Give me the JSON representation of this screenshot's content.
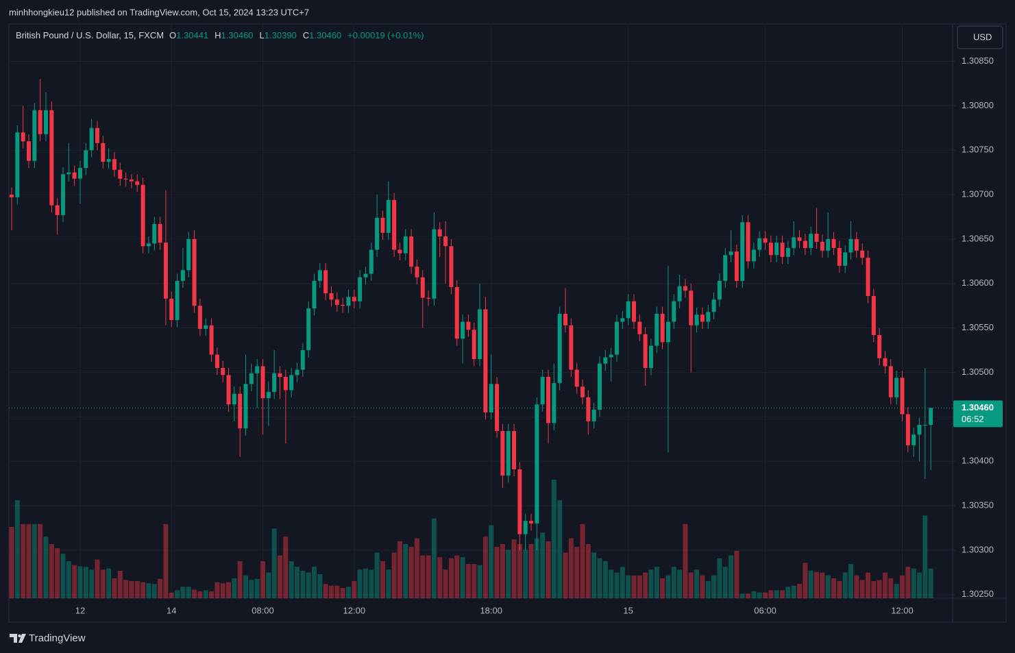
{
  "chart_data": {
    "type": "candlestick",
    "publisher": "minhhongkieu12 published on TradingView.com, Oct 15, 2024 13:23 UTC+7",
    "title": "British Pound / U.S. Dollar, 15, FXCM",
    "ohlc_legend": [
      {
        "key": "O",
        "label": "1.30441"
      },
      {
        "key": "H",
        "label": "1.30460"
      },
      {
        "key": "L",
        "label": "1.30390"
      },
      {
        "key": "C",
        "label": "1.30460"
      }
    ],
    "change": "+0.00019 (+0.01%)",
    "currency": "USD",
    "brand": "TradingView",
    "up_color": "#089981",
    "down_color": "#f23645",
    "grid": true,
    "categories": [
      null,
      null,
      null,
      null,
      null,
      null,
      null,
      null,
      null,
      null,
      null,
      null,
      "12",
      null,
      null,
      null,
      null,
      null,
      null,
      null,
      null,
      null,
      null,
      null,
      null,
      null,
      null,
      null,
      "14",
      null,
      null,
      null,
      null,
      null,
      null,
      null,
      null,
      null,
      null,
      null,
      null,
      null,
      null,
      null,
      "08:00",
      null,
      null,
      null,
      null,
      null,
      null,
      null,
      null,
      null,
      null,
      null,
      null,
      null,
      null,
      null,
      "12:00",
      null,
      null,
      null,
      null,
      null,
      null,
      null,
      null,
      null,
      null,
      null,
      null,
      null,
      null,
      null,
      null,
      null,
      null,
      null,
      null,
      null,
      null,
      null,
      "18:00",
      null,
      null,
      null,
      null,
      null,
      null,
      null,
      null,
      null,
      null,
      null,
      null,
      null,
      null,
      null,
      null,
      null,
      null,
      null,
      null,
      null,
      null,
      null,
      "15",
      null,
      null,
      null,
      null,
      null,
      null,
      null,
      null,
      null,
      null,
      null,
      null,
      null,
      null,
      null,
      null,
      null,
      null,
      null,
      null,
      null,
      null,
      null,
      "06:00",
      null,
      null,
      null,
      null,
      null,
      null,
      null,
      null,
      null,
      null,
      null,
      null,
      null,
      null,
      null,
      null,
      null,
      null,
      null,
      null,
      null,
      null,
      null,
      "12:00",
      null,
      null,
      null,
      null,
      null
    ],
    "open": [
      1.307,
      1.30697,
      1.3077,
      1.3076,
      1.30738,
      1.30795,
      1.30768,
      1.30795,
      1.30688,
      1.30677,
      1.30723,
      1.30725,
      1.30718,
      1.3073,
      1.3075,
      1.30775,
      1.30758,
      1.30737,
      1.3074,
      1.30728,
      1.30718,
      1.30717,
      1.30715,
      1.30711,
      1.30642,
      1.30645,
      1.30667,
      1.30646,
      1.30583,
      1.30559,
      1.30603,
      1.30615,
      1.3065,
      1.30575,
      1.30549,
      1.30553,
      1.3052,
      1.30505,
      1.30497,
      1.30464,
      1.30476,
      1.30437,
      1.30487,
      1.30499,
      1.30507,
      1.30471,
      1.30478,
      1.30499,
      1.30495,
      1.3048,
      1.30497,
      1.30503,
      1.30525,
      1.30572,
      1.30603,
      1.30615,
      1.30589,
      1.30582,
      1.30576,
      1.30575,
      1.30585,
      1.3058,
      1.30607,
      1.30611,
      1.30638,
      1.30674,
      1.30657,
      1.30694,
      1.30638,
      1.30634,
      1.30653,
      1.30619,
      1.30607,
      1.30584,
      1.30583,
      1.30661,
      1.30653,
      1.30642,
      1.30596,
      1.30538,
      1.30557,
      1.30548,
      1.30515,
      1.30571,
      1.30455,
      1.30487,
      1.30434,
      1.30384,
      1.30434,
      1.30391,
      1.30318,
      1.30333,
      1.3033,
      1.30464,
      1.30495,
      1.30443,
      1.30488,
      1.30566,
      1.30553,
      1.30503,
      1.30484,
      1.30472,
      1.30445,
      1.30458,
      1.3051,
      1.30517,
      1.3052,
      1.30557,
      1.30561,
      1.3058,
      1.30557,
      1.30543,
      1.30505,
      1.3053,
      1.30566,
      1.30534,
      1.30557,
      1.3058,
      1.30597,
      1.30592,
      1.30553,
      1.30565,
      1.30557,
      1.30568,
      1.30582,
      1.30603,
      1.30632,
      1.30636,
      1.30603,
      1.30669,
      1.30625,
      1.30638,
      1.30651,
      1.30646,
      1.30632,
      1.30646,
      1.3063,
      1.3064,
      1.30652,
      1.30648,
      1.3064,
      1.30656,
      1.30647,
      1.30637,
      1.3065,
      1.3064,
      1.3062,
      1.30635,
      1.3065,
      1.30637,
      1.30629,
      1.30586,
      1.30542,
      1.30516,
      1.30507,
      1.30472,
      1.30494,
      1.30453,
      1.30418,
      1.3043,
      1.30441,
      1.30441
    ],
    "high": [
      1.30708,
      1.30778,
      1.308,
      1.30768,
      1.30803,
      1.3083,
      1.30815,
      1.30805,
      1.30696,
      1.30731,
      1.30758,
      1.30733,
      1.30738,
      1.30758,
      1.30785,
      1.30783,
      1.30766,
      1.30752,
      1.30748,
      1.30736,
      1.30725,
      1.30723,
      1.30723,
      1.30719,
      1.30653,
      1.30675,
      1.30675,
      1.30705,
      1.30591,
      1.30611,
      1.3064,
      1.30658,
      1.3066,
      1.30583,
      1.30561,
      1.30561,
      1.30528,
      1.30513,
      1.30505,
      1.30484,
      1.30484,
      1.3052,
      1.3051,
      1.30515,
      1.30515,
      1.3049,
      1.30525,
      1.30507,
      1.30503,
      1.30505,
      1.30511,
      1.30533,
      1.3058,
      1.30611,
      1.30623,
      1.30623,
      1.30597,
      1.3059,
      1.30584,
      1.30593,
      1.30593,
      1.30615,
      1.30619,
      1.30646,
      1.307,
      1.30682,
      1.30715,
      1.30702,
      1.30646,
      1.30661,
      1.30661,
      1.30627,
      1.30615,
      1.30592,
      1.3068,
      1.30669,
      1.3067,
      1.3065,
      1.30604,
      1.30565,
      1.30565,
      1.30556,
      1.306,
      1.30585,
      1.3052,
      1.30495,
      1.30442,
      1.30442,
      1.30442,
      1.30399,
      1.30341,
      1.30341,
      1.30472,
      1.30503,
      1.30503,
      1.3051,
      1.30574,
      1.30595,
      1.30561,
      1.30511,
      1.30492,
      1.3048,
      1.30466,
      1.30518,
      1.30525,
      1.30528,
      1.30565,
      1.30569,
      1.30588,
      1.30588,
      1.30565,
      1.30551,
      1.30538,
      1.30574,
      1.30574,
      1.3062,
      1.30588,
      1.3061,
      1.30605,
      1.306,
      1.30573,
      1.30573,
      1.30576,
      1.3059,
      1.30611,
      1.3064,
      1.3066,
      1.30644,
      1.30677,
      1.30677,
      1.30646,
      1.30659,
      1.30659,
      1.30654,
      1.30654,
      1.30654,
      1.30648,
      1.3067,
      1.3066,
      1.30656,
      1.30664,
      1.30685,
      1.30655,
      1.3068,
      1.30658,
      1.30648,
      1.30643,
      1.3067,
      1.30658,
      1.30645,
      1.30637,
      1.30594,
      1.3055,
      1.30524,
      1.30515,
      1.30502,
      1.30502,
      1.30461,
      1.30438,
      1.30449,
      1.30505,
      1.3046
    ],
    "low": [
      1.3066,
      1.30689,
      1.30752,
      1.3073,
      1.3073,
      1.3076,
      1.3076,
      1.3068,
      1.30655,
      1.30669,
      1.30715,
      1.3071,
      1.3069,
      1.30722,
      1.30742,
      1.3075,
      1.30729,
      1.30729,
      1.3072,
      1.3071,
      1.30709,
      1.30707,
      1.30703,
      1.30634,
      1.30634,
      1.30637,
      1.30638,
      1.30553,
      1.30551,
      1.30551,
      1.30595,
      1.30607,
      1.30567,
      1.30541,
      1.30541,
      1.30512,
      1.30497,
      1.30489,
      1.30456,
      1.30445,
      1.30405,
      1.30429,
      1.30479,
      1.3046,
      1.3043,
      1.3044,
      1.3047,
      1.3047,
      1.3042,
      1.30472,
      1.30489,
      1.30495,
      1.30517,
      1.30564,
      1.30595,
      1.30581,
      1.30574,
      1.30568,
      1.30567,
      1.30567,
      1.30572,
      1.30572,
      1.30599,
      1.30603,
      1.3063,
      1.30649,
      1.30649,
      1.3063,
      1.30626,
      1.30626,
      1.30611,
      1.30599,
      1.3055,
      1.30575,
      1.30575,
      1.3063,
      1.306,
      1.30588,
      1.3053,
      1.3051,
      1.3054,
      1.30507,
      1.30507,
      1.30447,
      1.30447,
      1.30426,
      1.3037,
      1.30376,
      1.30383,
      1.303,
      1.303,
      1.30322,
      1.303,
      1.30456,
      1.3042,
      1.30435,
      1.3048,
      1.30545,
      1.30495,
      1.30476,
      1.30464,
      1.3043,
      1.30437,
      1.3045,
      1.30502,
      1.3049,
      1.30512,
      1.30549,
      1.30553,
      1.30549,
      1.30535,
      1.30485,
      1.30497,
      1.30522,
      1.30526,
      1.3041,
      1.30549,
      1.30572,
      1.30584,
      1.305,
      1.30545,
      1.30549,
      1.30549,
      1.3056,
      1.30574,
      1.30595,
      1.30624,
      1.30595,
      1.30595,
      1.30617,
      1.30617,
      1.3063,
      1.30638,
      1.30624,
      1.30624,
      1.30622,
      1.30622,
      1.30632,
      1.3064,
      1.30632,
      1.30632,
      1.30639,
      1.30629,
      1.30629,
      1.30632,
      1.30612,
      1.30612,
      1.30627,
      1.30629,
      1.30621,
      1.30578,
      1.30534,
      1.30508,
      1.30499,
      1.30464,
      1.30464,
      1.30445,
      1.3041,
      1.30405,
      1.304,
      1.3038,
      1.3039
    ],
    "close": [
      1.30697,
      1.3077,
      1.3076,
      1.30738,
      1.30795,
      1.30768,
      1.30795,
      1.30688,
      1.30677,
      1.30723,
      1.30725,
      1.30718,
      1.3073,
      1.3075,
      1.30775,
      1.30758,
      1.30737,
      1.3074,
      1.30728,
      1.30718,
      1.30717,
      1.30715,
      1.30711,
      1.30642,
      1.30645,
      1.30667,
      1.30646,
      1.30583,
      1.30559,
      1.30603,
      1.30615,
      1.3065,
      1.30575,
      1.30549,
      1.30553,
      1.3052,
      1.30505,
      1.30497,
      1.30464,
      1.30476,
      1.30437,
      1.30487,
      1.30499,
      1.30507,
      1.30471,
      1.30478,
      1.30499,
      1.30495,
      1.3048,
      1.30497,
      1.30503,
      1.30525,
      1.30572,
      1.30603,
      1.30615,
      1.30589,
      1.30582,
      1.30576,
      1.30575,
      1.30585,
      1.3058,
      1.30607,
      1.30611,
      1.30638,
      1.30674,
      1.30657,
      1.30694,
      1.30638,
      1.30634,
      1.30653,
      1.30619,
      1.30607,
      1.30584,
      1.30583,
      1.30661,
      1.30653,
      1.30642,
      1.30596,
      1.30538,
      1.30557,
      1.30548,
      1.30515,
      1.30571,
      1.30455,
      1.30487,
      1.30434,
      1.30384,
      1.30434,
      1.30391,
      1.30318,
      1.30333,
      1.3033,
      1.30464,
      1.30495,
      1.30443,
      1.30488,
      1.30566,
      1.30553,
      1.30503,
      1.30484,
      1.30472,
      1.30445,
      1.30458,
      1.3051,
      1.30517,
      1.3052,
      1.30557,
      1.30561,
      1.3058,
      1.30557,
      1.30543,
      1.30505,
      1.3053,
      1.30566,
      1.30534,
      1.30557,
      1.3058,
      1.30597,
      1.30592,
      1.30553,
      1.30565,
      1.30557,
      1.30568,
      1.30582,
      1.30603,
      1.30632,
      1.30636,
      1.30603,
      1.30669,
      1.30625,
      1.30638,
      1.30651,
      1.30646,
      1.30632,
      1.30646,
      1.3063,
      1.3064,
      1.30652,
      1.30648,
      1.3064,
      1.30656,
      1.30647,
      1.30637,
      1.3065,
      1.3064,
      1.3062,
      1.30635,
      1.3065,
      1.30637,
      1.30629,
      1.30586,
      1.30542,
      1.30516,
      1.30507,
      1.30472,
      1.30494,
      1.30453,
      1.30418,
      1.3043,
      1.30441,
      1.30441,
      1.3046
    ],
    "volume": [
      125,
      172,
      130,
      130,
      130,
      130,
      108,
      95,
      88,
      78,
      65,
      58,
      56,
      55,
      50,
      68,
      50,
      52,
      35,
      48,
      32,
      30,
      30,
      28,
      26,
      25,
      34,
      130,
      10,
      14,
      20,
      20,
      15,
      12,
      14,
      12,
      28,
      26,
      28,
      35,
      65,
      40,
      32,
      34,
      65,
      45,
      122,
      75,
      108,
      65,
      55,
      48,
      45,
      55,
      42,
      25,
      22,
      22,
      18,
      20,
      30,
      50,
      52,
      50,
      80,
      65,
      50,
      80,
      100,
      95,
      90,
      105,
      75,
      75,
      140,
      72,
      50,
      70,
      75,
      72,
      60,
      60,
      58,
      108,
      128,
      90,
      95,
      85,
      103,
      95,
      85,
      95,
      105,
      115,
      100,
      208,
      172,
      80,
      105,
      90,
      130,
      95,
      80,
      70,
      65,
      50,
      45,
      55,
      40,
      40,
      40,
      45,
      50,
      55,
      35,
      40,
      55,
      50,
      130,
      45,
      50,
      40,
      30,
      40,
      70,
      55,
      75,
      83,
      8,
      8,
      12,
      10,
      10,
      14,
      14,
      14,
      20,
      22,
      25,
      62,
      48,
      46,
      45,
      40,
      35,
      30,
      45,
      60,
      40,
      32,
      45,
      30,
      32,
      45,
      35,
      25,
      40,
      55,
      52,
      45,
      145,
      52
    ],
    "ylim": [
      1.30246,
      1.30892
    ],
    "yticks": [
      {
        "value": 1.3085,
        "label": "1.30850"
      },
      {
        "value": 1.308,
        "label": "1.30800"
      },
      {
        "value": 1.3075,
        "label": "1.30750"
      },
      {
        "value": 1.307,
        "label": "1.30700"
      },
      {
        "value": 1.3065,
        "label": "1.30650"
      },
      {
        "value": 1.306,
        "label": "1.30600"
      },
      {
        "value": 1.3055,
        "label": "1.30550"
      },
      {
        "value": 1.305,
        "label": "1.30500"
      },
      {
        "value": 1.3045,
        "label": "1.30450"
      },
      {
        "value": 1.304,
        "label": "1.30400"
      },
      {
        "value": 1.3035,
        "label": "1.30350"
      },
      {
        "value": 1.303,
        "label": "1.30300"
      },
      {
        "value": 1.3025,
        "label": "1.30250"
      }
    ],
    "last_price": {
      "value": 1.3046,
      "label": "1.30460"
    },
    "countdown": "06:52"
  }
}
